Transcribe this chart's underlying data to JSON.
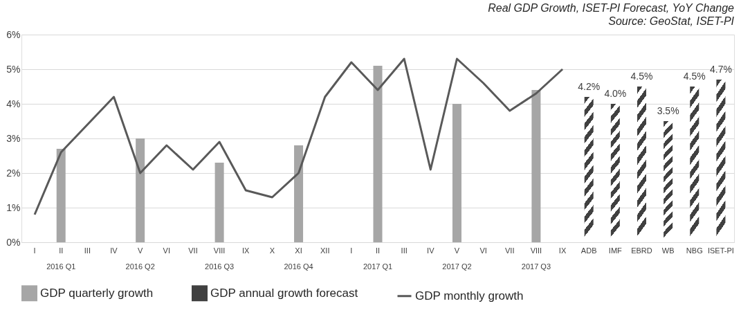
{
  "chart_data": {
    "type": "bar",
    "title": "Real GDP Growth, ISET-PI Forecast, YoY Change",
    "annotations": [
      "Source: GeoStat, ISET-PI",
      "2016 Q1",
      "2016 Q2",
      "2016 Q3",
      "2016 Q4",
      "2017 Q1",
      "2017 Q2",
      "2017 Q3"
    ],
    "categories": [
      "I",
      "II",
      "III",
      "IV",
      "V",
      "VI",
      "VII",
      "VIII",
      "IX",
      "X",
      "XI",
      "XII",
      "I",
      "II",
      "III",
      "IV",
      "V",
      "VI",
      "VII",
      "VIII",
      "IX",
      "ADB",
      "IMF",
      "EBRD",
      "WB",
      "NBG",
      "ISET-PI"
    ],
    "series": [
      {
        "name": "GDP quarterly growth",
        "color": "#a6a6a6",
        "values": [
          null,
          2.7,
          null,
          null,
          3.0,
          null,
          null,
          2.3,
          null,
          null,
          2.8,
          null,
          null,
          5.1,
          null,
          null,
          4.0,
          null,
          null,
          4.4,
          null,
          null,
          null,
          null,
          null,
          null,
          null
        ]
      },
      {
        "name": "GDP annual growth forecast",
        "color": "#404040",
        "values": [
          null,
          null,
          null,
          null,
          null,
          null,
          null,
          null,
          null,
          null,
          null,
          null,
          null,
          null,
          null,
          null,
          null,
          null,
          null,
          null,
          null,
          4.2,
          4.0,
          4.5,
          3.5,
          4.5,
          4.7
        ],
        "value_labels": [
          null,
          null,
          null,
          null,
          null,
          null,
          null,
          null,
          null,
          null,
          null,
          null,
          null,
          null,
          null,
          null,
          null,
          null,
          null,
          null,
          null,
          "4.2%",
          "4.0%",
          "4.5%",
          "3.5%",
          "4.5%",
          "4.7%"
        ]
      },
      {
        "name": "GDP monthly growth",
        "type": "line",
        "color": "#595959",
        "values": [
          0.8,
          2.6,
          3.4,
          4.2,
          2.0,
          2.8,
          2.1,
          2.9,
          1.5,
          1.3,
          2.0,
          4.2,
          5.2,
          4.4,
          5.3,
          2.1,
          5.3,
          4.6,
          3.8,
          4.3,
          5.0,
          null,
          null,
          null,
          null,
          null,
          null
        ]
      }
    ],
    "ylim": [
      0,
      6
    ],
    "yticks": [
      {
        "value": 0,
        "label": "0%"
      },
      {
        "value": 1,
        "label": "1%"
      },
      {
        "value": 2,
        "label": "2%"
      },
      {
        "value": 3,
        "label": "3%"
      },
      {
        "value": 4,
        "label": "4%"
      },
      {
        "value": 5,
        "label": "5%"
      },
      {
        "value": 6,
        "label": "6%"
      }
    ],
    "grid": "y",
    "legend": "bottom"
  }
}
